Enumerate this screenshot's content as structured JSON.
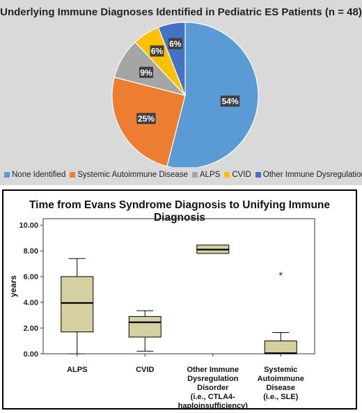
{
  "chart_data": [
    {
      "type": "pie",
      "title": "Underlying Immune Diagnoses Identified in Pediatric ES Patients (n = 48)",
      "slices": [
        {
          "label": "None Identified",
          "value": 54,
          "display": "54%",
          "color": "#5b9bd5"
        },
        {
          "label": "Systemic Autoimmune Disease",
          "value": 25,
          "display": "25%",
          "color": "#ed7d31"
        },
        {
          "label": "ALPS",
          "value": 9,
          "display": "9%",
          "color": "#a5a5a5"
        },
        {
          "label": "CVID",
          "value": 6,
          "display": "6%",
          "color": "#ffc000"
        },
        {
          "label": "Other Immune Dysregulation",
          "value": 6,
          "display": "6%",
          "color": "#4472c4"
        }
      ],
      "legend_position": "bottom"
    },
    {
      "type": "box",
      "title": "Time from Evans Syndrome Diagnosis to Unifying Immune Diagnosis",
      "ylabel": "years",
      "ylim": [
        0,
        10.5
      ],
      "yticks": [
        "0.00",
        "2.00",
        "4.00",
        "6.00",
        "8.00",
        "10.00"
      ],
      "box_color": "#d5d0a0",
      "categories": [
        {
          "lines": [
            "ALPS"
          ],
          "min": 0,
          "q1": 1.7,
          "median": 3.95,
          "q3": 6.0,
          "max": 7.4,
          "outliers": []
        },
        {
          "lines": [
            "CVID"
          ],
          "min": 0.2,
          "q1": 1.3,
          "median": 2.45,
          "q3": 2.9,
          "max": 3.35,
          "outliers": []
        },
        {
          "lines": [
            "Other Immune",
            "Dysregulation",
            "Disorder",
            "(i.e., CTLA4-",
            "haploinsufficiency)"
          ],
          "min": 7.8,
          "q1": 7.8,
          "median": 8.1,
          "q3": 8.45,
          "max": 8.45,
          "outliers": []
        },
        {
          "lines": [
            "Systemic",
            "Autoimmune",
            "Disease",
            "(i.e., SLE)"
          ],
          "min": 0,
          "q1": 0,
          "median": 0.05,
          "q3": 1.0,
          "max": 1.65,
          "outliers": [
            6.2
          ]
        }
      ]
    }
  ]
}
